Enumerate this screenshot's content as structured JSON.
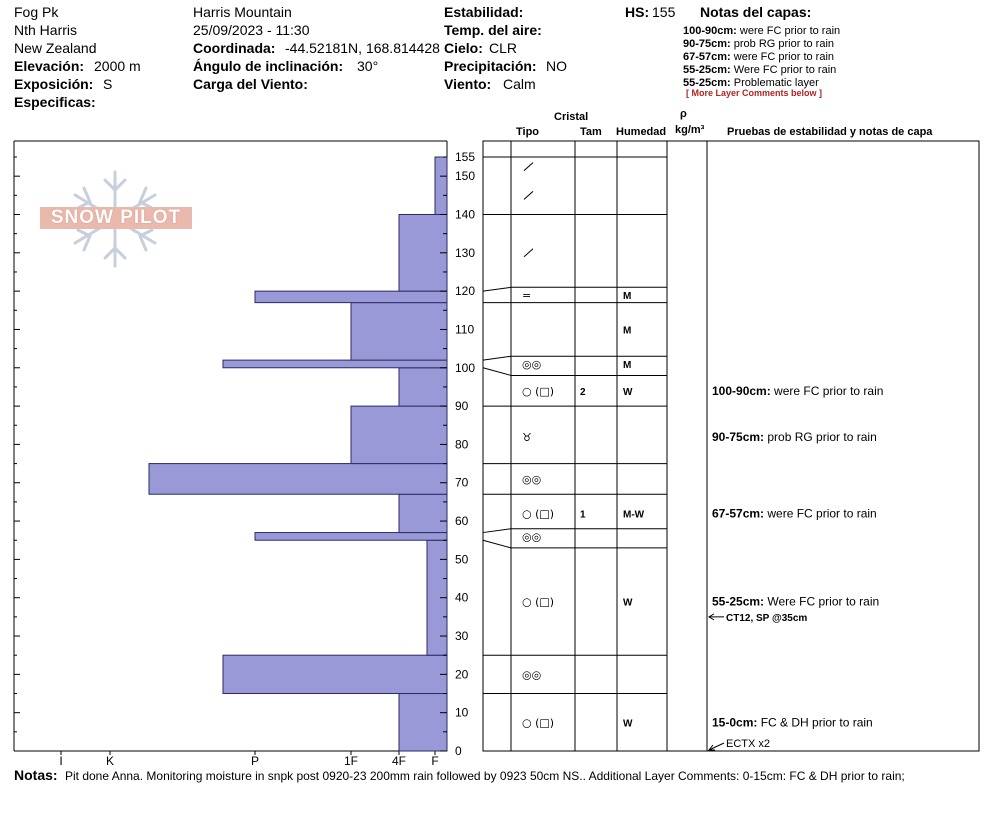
{
  "header": {
    "col1": {
      "peak": "Fog Pk",
      "area": "Nth Harris",
      "country": "New Zealand",
      "elevation_label": "Elevación:",
      "elevation_value": "2000 m",
      "aspect_label": "Exposición:",
      "aspect_value": "S",
      "specifics_label": "Especificas:"
    },
    "col2": {
      "range": "Harris Mountain",
      "datetime": "25/09/2023 - 11:30",
      "coord_label": "Coordinada:",
      "coord_value": "-44.52181N, 168.814428",
      "slope_label": "Ángulo de inclinación:",
      "slope_value": "30°",
      "wind_load_label": "Carga del Viento:"
    },
    "col3": {
      "stability_label": "Estabilidad:",
      "air_temp_label": "Temp. del aire:",
      "sky_label": "Cielo:",
      "sky_value": "CLR",
      "precip_label": "Precipitación:",
      "precip_value": "NO",
      "wind_label": "Viento:",
      "wind_value": "Calm"
    },
    "hs_label": "HS:",
    "hs_value": "155",
    "layer_notes": {
      "title": "Notas del capas:",
      "items": [
        {
          "range": "100-90cm:",
          "text": "were FC prior to rain"
        },
        {
          "range": "90-75cm:",
          "text": "prob RG prior to rain"
        },
        {
          "range": "67-57cm:",
          "text": "were FC prior to rain"
        },
        {
          "range": "55-25cm:",
          "text": "Were FC prior to rain"
        },
        {
          "range": "55-25cm:",
          "text": "Problematic layer"
        }
      ],
      "more": "[ More Layer Comments below ]"
    }
  },
  "logo": {
    "text": "SNOW PILOT"
  },
  "columns": {
    "crystal": "Cristal",
    "type": "Tipo",
    "size": "Tam",
    "moisture": "Humedad",
    "rho": "ρ",
    "density_unit": "kg/m³",
    "tests": "Pruebas de estabilidad y notas de capa"
  },
  "chart_data": {
    "type": "bar",
    "orientation": "horizontal",
    "title": "",
    "x_axis": {
      "ticks": [
        "I",
        "K",
        "P",
        "1F",
        "4F",
        "F"
      ]
    },
    "y_axis": {
      "min": 0,
      "max": 155,
      "ticks": [
        0,
        10,
        20,
        30,
        40,
        50,
        60,
        70,
        80,
        90,
        100,
        110,
        120,
        130,
        140,
        150,
        155
      ]
    },
    "hardness_profile": [
      {
        "bottom": 0,
        "top": 15,
        "hardness": "4F"
      },
      {
        "bottom": 15,
        "top": 25,
        "hardness": "P+"
      },
      {
        "bottom": 25,
        "top": 55,
        "hardness": "F+"
      },
      {
        "bottom": 55,
        "top": 57,
        "hardness": "P"
      },
      {
        "bottom": 57,
        "top": 67,
        "hardness": "4F"
      },
      {
        "bottom": 67,
        "top": 75,
        "hardness": "K-"
      },
      {
        "bottom": 75,
        "top": 90,
        "hardness": "1F"
      },
      {
        "bottom": 90,
        "top": 100,
        "hardness": "4F"
      },
      {
        "bottom": 100,
        "top": 102,
        "hardness": "P+"
      },
      {
        "bottom": 102,
        "top": 117,
        "hardness": "1F"
      },
      {
        "bottom": 117,
        "top": 120,
        "hardness": "P"
      },
      {
        "bottom": 120,
        "top": 140,
        "hardness": "4F"
      },
      {
        "bottom": 140,
        "top": 155,
        "hardness": "F"
      }
    ],
    "layers": [
      {
        "top": 155,
        "bottom": 140,
        "label_pos": 152.5,
        "type": "slash",
        "size": "",
        "moisture": ""
      },
      {
        "top": 140,
        "bottom": 121,
        "label_pos": 145,
        "type": "slash",
        "size": "",
        "moisture": ""
      },
      {
        "top": 140,
        "bottom": 121,
        "label_pos": 130,
        "type": "slash",
        "size": "",
        "moisture": ""
      },
      {
        "top": 121,
        "bottom": 117,
        "label_pos": 119,
        "type": "=",
        "size": "",
        "moisture": "M"
      },
      {
        "top": 117,
        "bottom": 103,
        "label_pos": 110,
        "type": "",
        "size": "",
        "moisture": "M"
      },
      {
        "top": 103,
        "bottom": 98,
        "label_pos": 101,
        "type": "◎◎",
        "size": "",
        "moisture": "M"
      },
      {
        "top": 98,
        "bottom": 90,
        "label_pos": 94,
        "type": "○ (□)",
        "size": "2",
        "moisture": "W"
      },
      {
        "top": 90,
        "bottom": 75,
        "label_pos": 82,
        "type": "♉",
        "size": "",
        "moisture": ""
      },
      {
        "top": 75,
        "bottom": 67,
        "label_pos": 71,
        "type": "◎◎",
        "size": "",
        "moisture": ""
      },
      {
        "top": 67,
        "bottom": 58,
        "label_pos": 62,
        "type": "○ (□)",
        "size": "1",
        "moisture": "M-W"
      },
      {
        "top": 58,
        "bottom": 53,
        "label_pos": 56,
        "type": "◎◎",
        "size": "",
        "moisture": ""
      },
      {
        "top": 53,
        "bottom": 25,
        "label_pos": 39,
        "type": "○ (□)",
        "size": "",
        "moisture": "W"
      },
      {
        "top": 25,
        "bottom": 15,
        "label_pos": 20,
        "type": "◎◎",
        "size": "",
        "moisture": ""
      },
      {
        "top": 15,
        "bottom": 0,
        "label_pos": 7.5,
        "type": "○ (□)",
        "size": "",
        "moisture": "W"
      }
    ],
    "layer_boundaries": [
      0,
      15,
      25,
      53,
      58,
      67,
      75,
      90,
      98,
      103,
      117,
      121,
      140,
      155
    ],
    "actual_boundaries_left": [
      15,
      25,
      55,
      57,
      67,
      75,
      90,
      100,
      102,
      117,
      120,
      140,
      155
    ],
    "stability_notes": [
      {
        "range": "100-90cm:",
        "text": "were FC prior to rain",
        "pos": 94
      },
      {
        "range": "90-75cm:",
        "text": "prob RG prior to rain",
        "pos": 82
      },
      {
        "range": "67-57cm:",
        "text": "were FC prior to rain",
        "pos": 62
      },
      {
        "range": "55-25cm:",
        "text": "Were FC prior to rain",
        "pos": 39
      }
    ],
    "tests": [
      {
        "text": "CT12, SP @35cm",
        "depth": 35
      },
      {
        "text": "ECTX  x2",
        "depth": 0
      }
    ],
    "bottom_note": {
      "range": "15-0cm:",
      "text": "FC & DH prior to rain",
      "pos": 7.5
    }
  },
  "notes": {
    "label": "Notas:",
    "text": "Pit done Anna. Monitoring moisture in snpk post 0920-23 200mm rain followed by 0923 50cm NS.. Additional Layer Comments: 0-15cm: FC & DH prior to rain;"
  },
  "colors": {
    "bar_fill": "#9999d8",
    "bar_stroke": "#2a2a66",
    "logo_blue": "#c7cfdc",
    "logo_pink": "#e9b9ad"
  }
}
